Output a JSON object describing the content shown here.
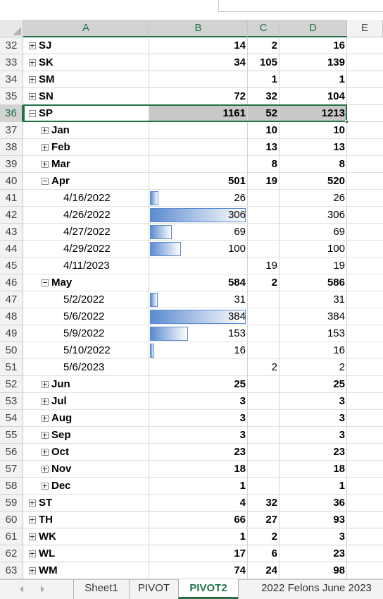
{
  "columns": [
    "A",
    "B",
    "C",
    "D",
    "E"
  ],
  "selected_row": 36,
  "rows": [
    {
      "row": 32,
      "label": "SJ",
      "level": 0,
      "toggle": "plus",
      "b": 14,
      "c": 2,
      "d": 16
    },
    {
      "row": 33,
      "label": "SK",
      "level": 0,
      "toggle": "plus",
      "b": 34,
      "c": 105,
      "d": 139
    },
    {
      "row": 34,
      "label": "SM",
      "level": 0,
      "toggle": "plus",
      "c": 1,
      "d": 1
    },
    {
      "row": 35,
      "label": "SN",
      "level": 0,
      "toggle": "plus",
      "b": 72,
      "c": 32,
      "d": 104
    },
    {
      "row": 36,
      "label": "SP",
      "level": 0,
      "toggle": "minus",
      "b": 1161,
      "c": 52,
      "d": 1213
    },
    {
      "row": 37,
      "label": "Jan",
      "level": 1,
      "toggle": "plus",
      "c": 10,
      "d": 10
    },
    {
      "row": 38,
      "label": "Feb",
      "level": 1,
      "toggle": "plus",
      "c": 13,
      "d": 13
    },
    {
      "row": 39,
      "label": "Mar",
      "level": 1,
      "toggle": "plus",
      "c": 8,
      "d": 8
    },
    {
      "row": 40,
      "label": "Apr",
      "level": 1,
      "toggle": "minus",
      "b": 501,
      "c": 19,
      "d": 520
    },
    {
      "row": 41,
      "label": "4/16/2022",
      "level": 2,
      "bar": true,
      "b": 26,
      "d": 26
    },
    {
      "row": 42,
      "label": "4/26/2022",
      "level": 2,
      "bar": true,
      "b": 306,
      "d": 306
    },
    {
      "row": 43,
      "label": "4/27/2022",
      "level": 2,
      "bar": true,
      "b": 69,
      "d": 69
    },
    {
      "row": 44,
      "label": "4/29/2022",
      "level": 2,
      "bar": true,
      "b": 100,
      "d": 100
    },
    {
      "row": 45,
      "label": "4/11/2023",
      "level": 2,
      "c": 19,
      "d": 19
    },
    {
      "row": 46,
      "label": "May",
      "level": 1,
      "toggle": "minus",
      "b": 584,
      "c": 2,
      "d": 586
    },
    {
      "row": 47,
      "label": "5/2/2022",
      "level": 2,
      "bar": true,
      "b": 31,
      "d": 31
    },
    {
      "row": 48,
      "label": "5/6/2022",
      "level": 2,
      "bar": true,
      "b": 384,
      "d": 384
    },
    {
      "row": 49,
      "label": "5/9/2022",
      "level": 2,
      "bar": true,
      "b": 153,
      "d": 153
    },
    {
      "row": 50,
      "label": "5/10/2022",
      "level": 2,
      "bar": true,
      "b": 16,
      "d": 16
    },
    {
      "row": 51,
      "label": "5/6/2023",
      "level": 2,
      "c": 2,
      "d": 2
    },
    {
      "row": 52,
      "label": "Jun",
      "level": 1,
      "toggle": "plus",
      "b": 25,
      "d": 25
    },
    {
      "row": 53,
      "label": "Jul",
      "level": 1,
      "toggle": "plus",
      "b": 3,
      "d": 3
    },
    {
      "row": 54,
      "label": "Aug",
      "level": 1,
      "toggle": "plus",
      "b": 3,
      "d": 3
    },
    {
      "row": 55,
      "label": "Sep",
      "level": 1,
      "toggle": "plus",
      "b": 3,
      "d": 3
    },
    {
      "row": 56,
      "label": "Oct",
      "level": 1,
      "toggle": "plus",
      "b": 23,
      "d": 23
    },
    {
      "row": 57,
      "label": "Nov",
      "level": 1,
      "toggle": "plus",
      "b": 18,
      "d": 18
    },
    {
      "row": 58,
      "label": "Dec",
      "level": 1,
      "toggle": "plus",
      "b": 1,
      "d": 1
    },
    {
      "row": 59,
      "label": "ST",
      "level": 0,
      "toggle": "plus",
      "b": 4,
      "c": 32,
      "d": 36
    },
    {
      "row": 60,
      "label": "TH",
      "level": 0,
      "toggle": "plus",
      "b": 66,
      "c": 27,
      "d": 93
    },
    {
      "row": 61,
      "label": "WK",
      "level": 0,
      "toggle": "plus",
      "b": 1,
      "c": 2,
      "d": 3
    },
    {
      "row": 62,
      "label": "WL",
      "level": 0,
      "toggle": "plus",
      "b": 17,
      "c": 6,
      "d": 23
    },
    {
      "row": 63,
      "label": "WM",
      "level": 0,
      "toggle": "plus",
      "b": 74,
      "c": 24,
      "d": 98
    }
  ],
  "tabs": [
    "Sheet1",
    "PIVOT",
    "PIVOT2",
    "2022 Felons June 2023"
  ],
  "active_tab": 2
}
